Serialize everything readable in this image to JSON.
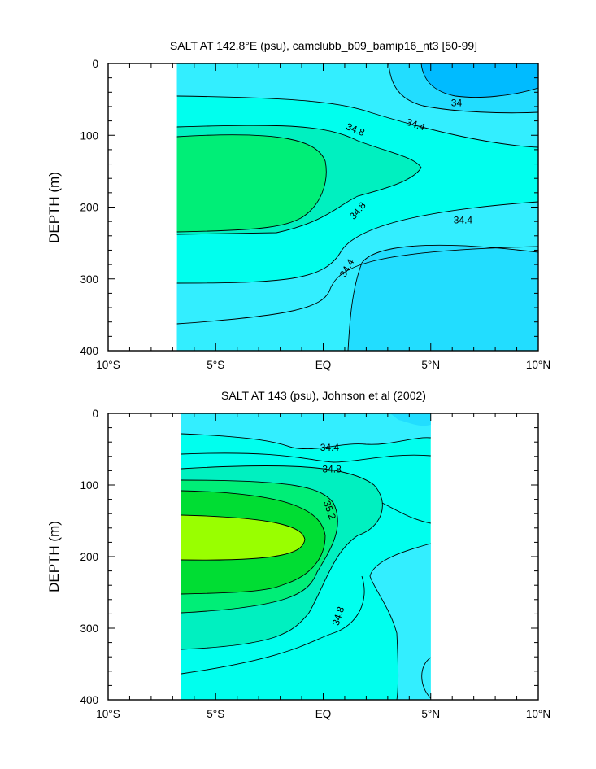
{
  "colors": {
    "s_33_8": "#00bbff",
    "s_34_0": "#22ddff",
    "s_34_4": "#33eeff",
    "s_34_6": "#00ffee",
    "s_34_8": "#00f0c0",
    "s_35_0": "#00ee77",
    "s_35_2": "#00dd33",
    "s_35_4": "#99ff00",
    "contour": "#000000"
  },
  "chart_data": [
    {
      "type": "contour",
      "title": "SALT AT 142.8°E (psu), camclubb_b09_bamip16_nt3 [50-99]",
      "ylabel": "DEPTH (m)",
      "xlim": [
        -10,
        10
      ],
      "ylim": [
        400,
        0
      ],
      "x_ticks": [
        "10°S",
        "5°S",
        "EQ",
        "5°N",
        "10°N"
      ],
      "y_ticks": [
        "0",
        "100",
        "200",
        "300",
        "400"
      ],
      "data_extent_lat": [
        -6.8,
        10
      ],
      "contour_labels": [
        {
          "text": "34",
          "lat": 6.2,
          "depth": 55,
          "angle": 0
        },
        {
          "text": "34.4",
          "lat": 4.3,
          "depth": 85,
          "angle": 18
        },
        {
          "text": "34.8",
          "lat": 1.5,
          "depth": 92,
          "angle": 22
        },
        {
          "text": "34.8",
          "lat": 1.6,
          "depth": 205,
          "angle": -50
        },
        {
          "text": "34.4",
          "lat": 6.5,
          "depth": 218,
          "angle": 0
        },
        {
          "text": "34.4",
          "lat": 1.1,
          "depth": 285,
          "angle": -60
        }
      ]
    },
    {
      "type": "contour",
      "title": "SALT AT 143 (psu), Johnson et al (2002)",
      "ylabel": "DEPTH (m)",
      "xlim": [
        -10,
        10
      ],
      "ylim": [
        400,
        0
      ],
      "x_ticks": [
        "10°S",
        "5°S",
        "EQ",
        "5°N",
        "10°N"
      ],
      "y_ticks": [
        "0",
        "100",
        "200",
        "300",
        "400"
      ],
      "data_extent_lat": [
        -6.6,
        5
      ],
      "contour_labels": [
        {
          "text": "34.4",
          "lat": 0.3,
          "depth": 48,
          "angle": 0
        },
        {
          "text": "34.8",
          "lat": 0.4,
          "depth": 78,
          "angle": 0
        },
        {
          "text": "35.2",
          "lat": 0.3,
          "depth": 135,
          "angle": 70
        },
        {
          "text": "34.8",
          "lat": 0.7,
          "depth": 283,
          "angle": -72
        }
      ]
    }
  ]
}
